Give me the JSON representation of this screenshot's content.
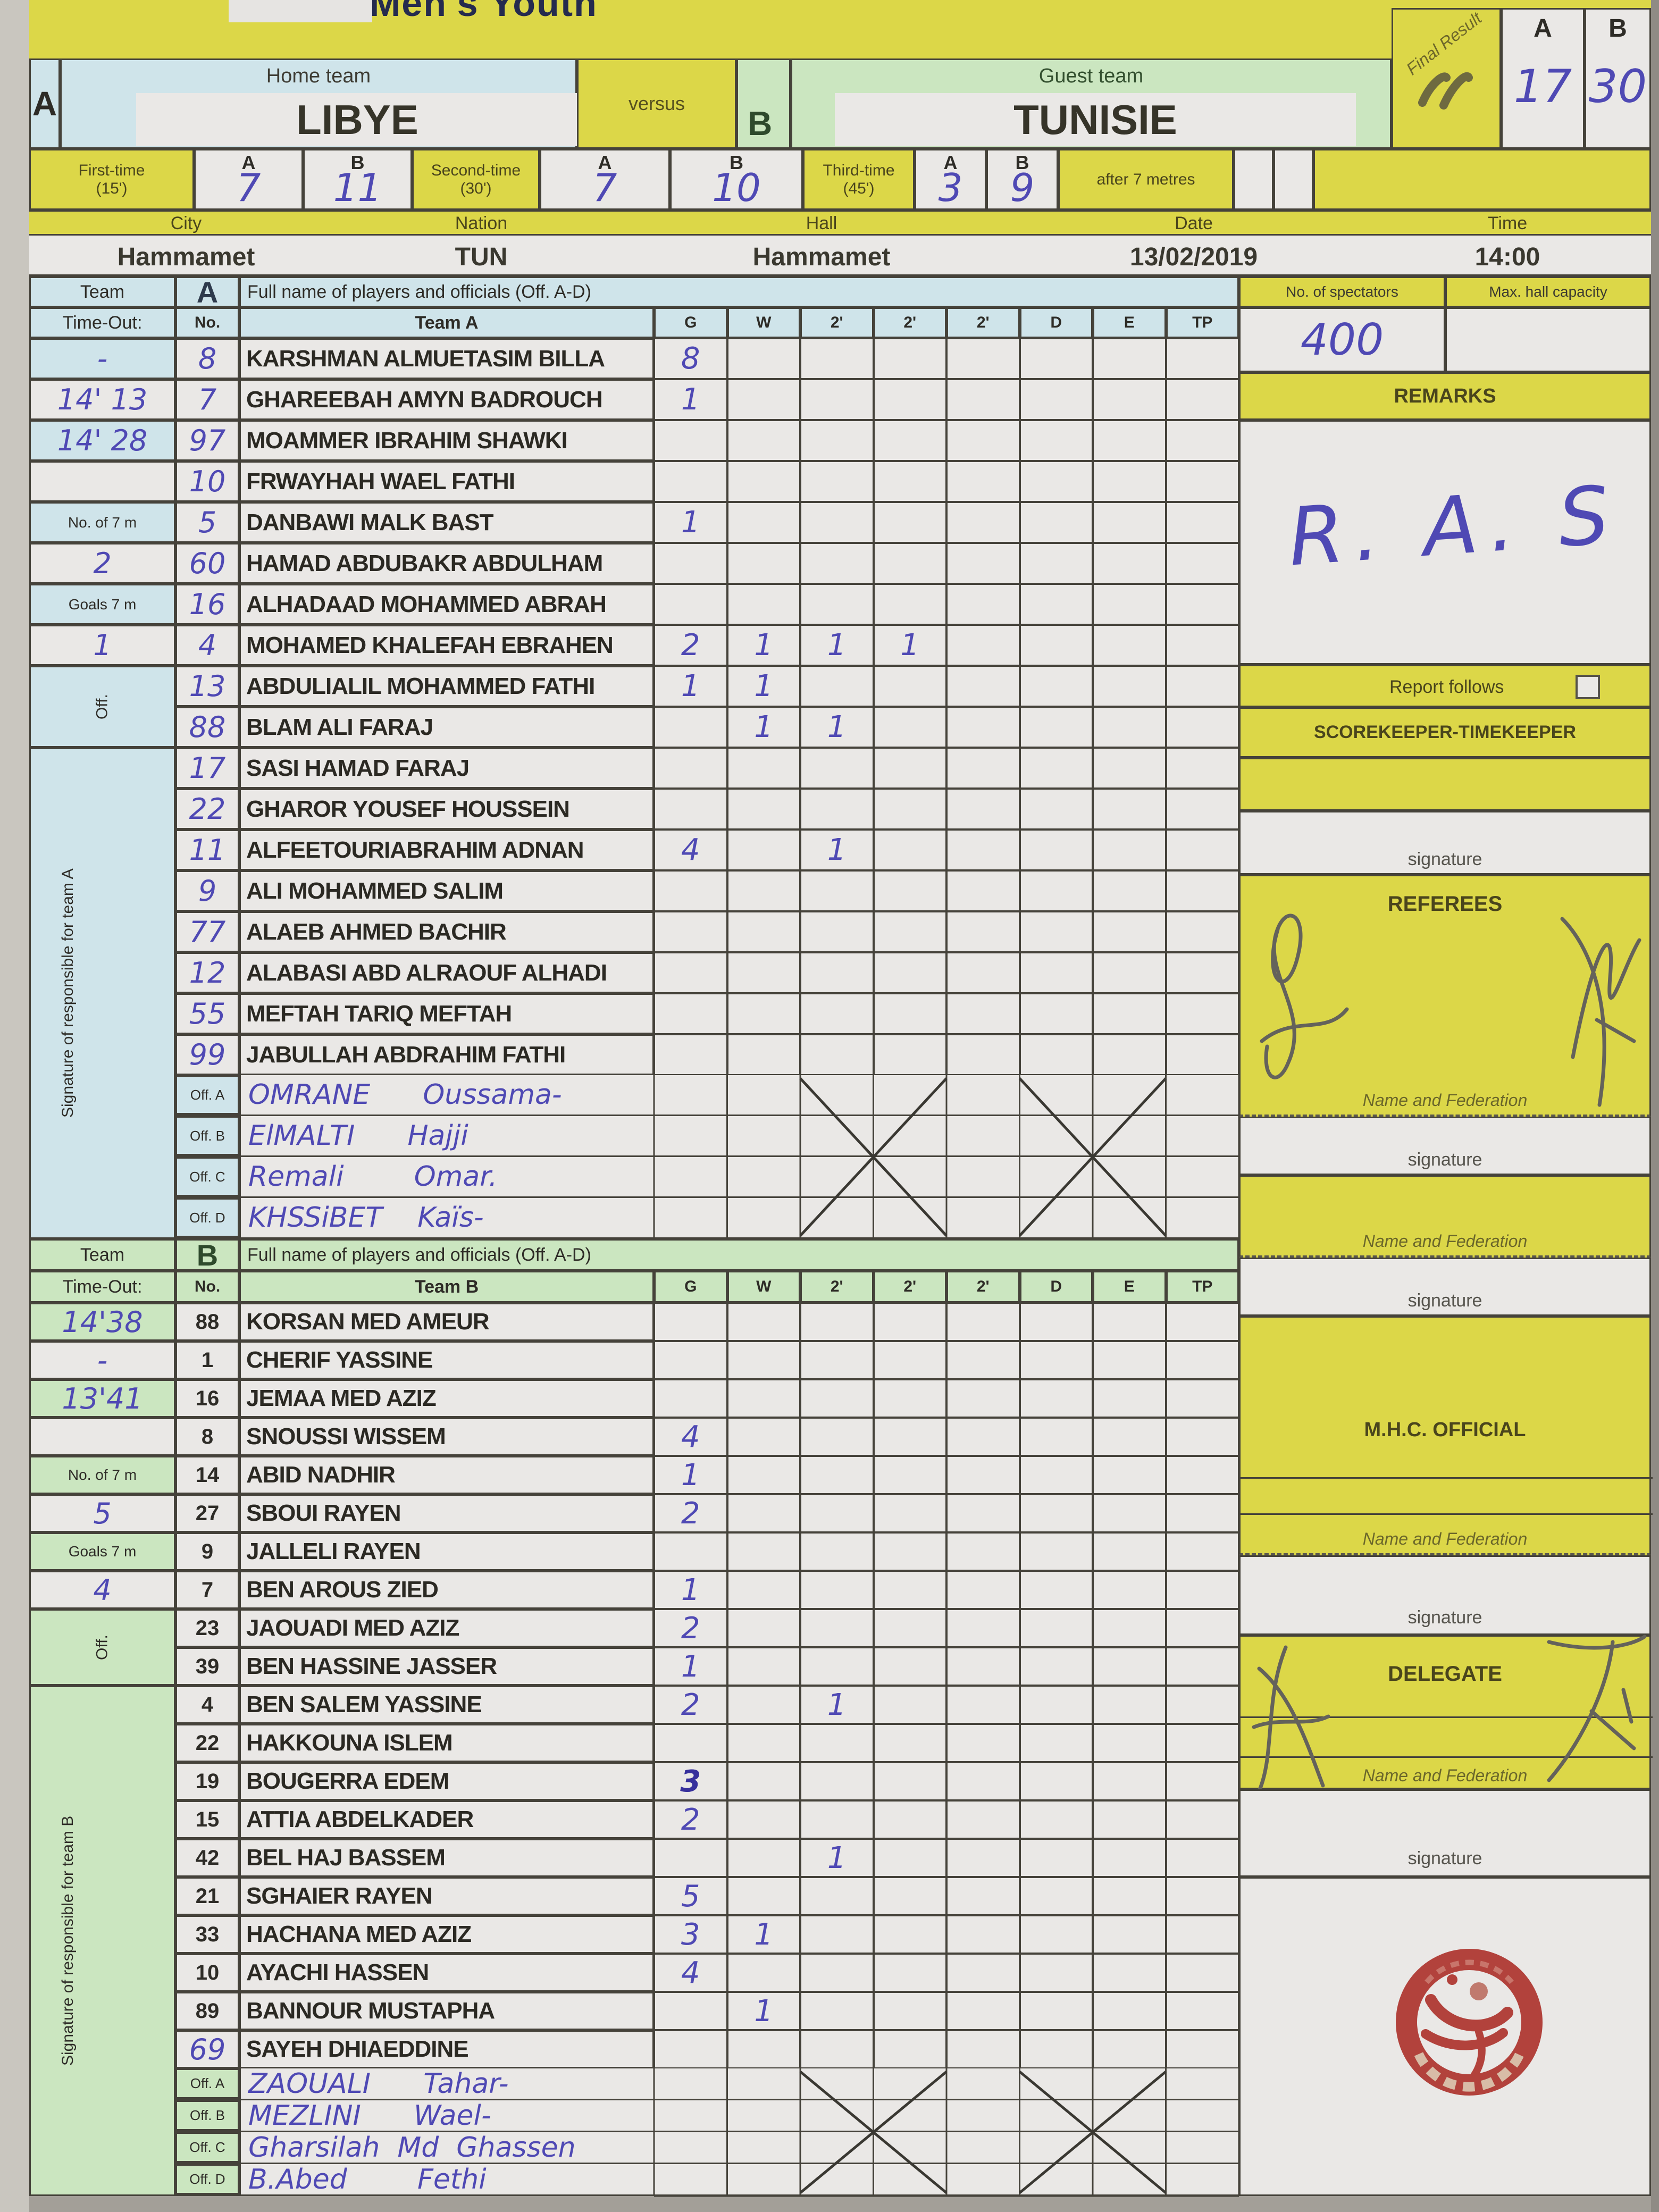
{
  "photo": {
    "title_fragment": "Men's Youth"
  },
  "colors": {
    "yellow": "#dcd748",
    "team_a_tint": "#cfe4ea",
    "team_b_tint": "#cbe6c0",
    "ink_blue": "#4f49b4",
    "stamp_red": "#b2423c"
  },
  "header": {
    "home": {
      "letter": "A",
      "label": "Home team",
      "name": "LIBYE"
    },
    "versus_label": "versus",
    "guest": {
      "letter": "B",
      "label": "Guest team",
      "name": "TUNISIE"
    },
    "final": {
      "label": "Final Result",
      "a_label": "A",
      "a": "17",
      "b_label": "B",
      "b": "30"
    },
    "periods": [
      {
        "label": "First-time",
        "sub": "(15')",
        "a_label": "A",
        "b_label": "B",
        "a": "7",
        "b": "11"
      },
      {
        "label": "Second-time",
        "sub": "(30')",
        "a_label": "A",
        "b_label": "B",
        "a": "7",
        "b": "10"
      },
      {
        "label": "Third-time",
        "sub": "(45')",
        "a_label": "A",
        "b_label": "B",
        "a": "3",
        "b": "9"
      },
      {
        "label": "after 7 metres",
        "a": "",
        "b": ""
      }
    ],
    "meta": {
      "labels": [
        "City",
        "Nation",
        "Hall",
        "Date",
        "Time"
      ],
      "values": [
        "Hammamet",
        "TUN",
        "Hammamet",
        "13/02/2019",
        "14:00"
      ]
    }
  },
  "spectators": {
    "label": "No. of spectators",
    "value": "400",
    "capacity_label": "Max. hall capacity",
    "capacity_value": ""
  },
  "stat_cols": [
    "G",
    "W",
    "2'",
    "2'",
    "2'",
    "D",
    "E",
    "TP"
  ],
  "team_a": {
    "section_label": "Team",
    "timeout_label": "Time-Out:",
    "letter": "A",
    "no_label": "No.",
    "fullname_label": "Full name of players and officials (Off. A-D)",
    "team_col_label": "Team A",
    "off_vertical_label": "Off.",
    "signature_vertical_label": "Signature of responsible for team A",
    "timeout_rows": [
      {
        "text": "-",
        "hw": true,
        "small": false
      },
      {
        "text": "14' 13",
        "hw": true,
        "small": false
      },
      {
        "text": "14' 28",
        "hw": true,
        "small": false
      },
      {
        "text": "",
        "hw": false,
        "small": false
      },
      {
        "text": "No. of 7 m",
        "hw": false,
        "small": true
      },
      {
        "text": "2",
        "hw": true,
        "small": false
      },
      {
        "text": "Goals 7 m",
        "hw": false,
        "small": true
      },
      {
        "text": "1",
        "hw": true,
        "small": false
      }
    ],
    "players": [
      {
        "no": "8",
        "name": "KARSHMAN ALMUETASIM BILLA",
        "stats": [
          "8",
          "",
          "",
          "",
          "",
          "",
          "",
          ""
        ]
      },
      {
        "no": "7",
        "name": "GHAREEBAH AMYN BADROUCH",
        "stats": [
          "1",
          "",
          "",
          "",
          "",
          "",
          "",
          ""
        ]
      },
      {
        "no": "97",
        "name": "MOAMMER IBRAHIM SHAWKI",
        "stats": [
          "",
          "",
          "",
          "",
          "",
          "",
          "",
          ""
        ]
      },
      {
        "no": "10",
        "name": "FRWAYHAH WAEL FATHI",
        "stats": [
          "",
          "",
          "",
          "",
          "",
          "",
          "",
          ""
        ]
      },
      {
        "no": "5",
        "name": "DANBAWI MALK BAST",
        "stats": [
          "1",
          "",
          "",
          "",
          "",
          "",
          "",
          ""
        ]
      },
      {
        "no": "60",
        "name": "HAMAD ABDUBAKR ABDULHAM",
        "stats": [
          "",
          "",
          "",
          "",
          "",
          "",
          "",
          ""
        ]
      },
      {
        "no": "16",
        "name": "ALHADAAD MOHAMMED ABRAH",
        "stats": [
          "",
          "",
          "",
          "",
          "",
          "",
          "",
          ""
        ]
      },
      {
        "no": "4",
        "name": "MOHAMED KHALEFAH EBRAHEN",
        "stats": [
          "2",
          "1",
          "1",
          "1",
          "",
          "",
          "",
          ""
        ]
      },
      {
        "no": "13",
        "name": "ABDULIALIL MOHAMMED FATHI",
        "stats": [
          "1",
          "1",
          "",
          "",
          "",
          "",
          "",
          ""
        ]
      },
      {
        "no": "88",
        "name": "BLAM ALI FARAJ",
        "stats": [
          "",
          "1",
          "1",
          "",
          "",
          "",
          "",
          ""
        ]
      },
      {
        "no": "17",
        "name": "SASI HAMAD FARAJ",
        "stats": [
          "",
          "",
          "",
          "",
          "",
          "",
          "",
          ""
        ]
      },
      {
        "no": "22",
        "name": "GHAROR YOUSEF HOUSSEIN",
        "stats": [
          "",
          "",
          "",
          "",
          "",
          "",
          "",
          ""
        ]
      },
      {
        "no": "11",
        "name": "ALFEETOURIABRAHIM ADNAN",
        "stats": [
          "4",
          "",
          "1",
          "",
          "",
          "",
          "",
          ""
        ]
      },
      {
        "no": "9",
        "name": "ALI MOHAMMED SALIM",
        "stats": [
          "",
          "",
          "",
          "",
          "",
          "",
          "",
          ""
        ]
      },
      {
        "no": "77",
        "name": "ALAEB AHMED BACHIR",
        "stats": [
          "",
          "",
          "",
          "",
          "",
          "",
          "",
          ""
        ]
      },
      {
        "no": "12",
        "name": "ALABASI ABD ALRAOUF ALHADI",
        "stats": [
          "",
          "",
          "",
          "",
          "",
          "",
          "",
          ""
        ]
      },
      {
        "no": "55",
        "name": "MEFTAH TARIQ MEFTAH",
        "stats": [
          "",
          "",
          "",
          "",
          "",
          "",
          "",
          ""
        ]
      },
      {
        "no": "99",
        "name": "JABULLAH ABDRAHIM FATHI",
        "stats": [
          "",
          "",
          "",
          "",
          "",
          "",
          "",
          ""
        ]
      }
    ],
    "officials": [
      {
        "label": "Off. A",
        "name": "OMRANE      Oussama-"
      },
      {
        "label": "Off. B",
        "name": "ElMALTI      Hajji"
      },
      {
        "label": "Off. C",
        "name": "Remali        Omar."
      },
      {
        "label": "Off. D",
        "name": "KHSSiBET    Kaïs-"
      }
    ]
  },
  "team_b": {
    "section_label": "Team",
    "timeout_label": "Time-Out:",
    "letter": "B",
    "no_label": "No.",
    "fullname_label": "Full name of players and officials (Off. A-D)",
    "team_col_label": "Team B",
    "off_vertical_label": "Off.",
    "signature_vertical_label": "Signature of responsible for team B",
    "timeout_rows": [
      {
        "text": "14'38",
        "hw": true,
        "small": false
      },
      {
        "text": "-",
        "hw": true,
        "small": false
      },
      {
        "text": "13'41",
        "hw": true,
        "small": false
      },
      {
        "text": "",
        "hw": false,
        "small": false
      },
      {
        "text": "No. of 7 m",
        "hw": false,
        "small": true
      },
      {
        "text": "5",
        "hw": true,
        "small": false
      },
      {
        "text": "Goals 7 m",
        "hw": false,
        "small": true
      },
      {
        "text": "4",
        "hw": true,
        "small": false
      }
    ],
    "players": [
      {
        "no": "88",
        "name": "KORSAN MED AMEUR",
        "stats": [
          "",
          "",
          "",
          "",
          "",
          "",
          "",
          ""
        ]
      },
      {
        "no": "1",
        "name": "CHERIF YASSINE",
        "stats": [
          "",
          "",
          "",
          "",
          "",
          "",
          "",
          ""
        ]
      },
      {
        "no": "16",
        "name": "JEMAA MED AZIZ",
        "stats": [
          "",
          "",
          "",
          "",
          "",
          "",
          "",
          ""
        ]
      },
      {
        "no": "8",
        "name": "SNOUSSI WISSEM",
        "stats": [
          "4",
          "",
          "",
          "",
          "",
          "",
          "",
          ""
        ]
      },
      {
        "no": "14",
        "name": "ABID NADHIR",
        "stats": [
          "1",
          "",
          "",
          "",
          "",
          "",
          "",
          ""
        ]
      },
      {
        "no": "27",
        "name": "SBOUI RAYEN",
        "stats": [
          "2",
          "",
          "",
          "",
          "",
          "",
          "",
          ""
        ]
      },
      {
        "no": "9",
        "name": "JALLELI RAYEN",
        "stats": [
          "",
          "",
          "",
          "",
          "",
          "",
          "",
          ""
        ]
      },
      {
        "no": "7",
        "name": "BEN AROUS ZIED",
        "stats": [
          "1",
          "",
          "",
          "",
          "",
          "",
          "",
          ""
        ]
      },
      {
        "no": "23",
        "name": "JAOUADI MED AZIZ",
        "stats": [
          "2",
          "",
          "",
          "",
          "",
          "",
          "",
          ""
        ]
      },
      {
        "no": "39",
        "name": "BEN HASSINE JASSER",
        "stats": [
          "1",
          "",
          "",
          "",
          "",
          "",
          "",
          ""
        ]
      },
      {
        "no": "4",
        "name": "BEN SALEM YASSINE",
        "stats": [
          "2",
          "",
          "1",
          "",
          "",
          "",
          "",
          ""
        ]
      },
      {
        "no": "22",
        "name": "HAKKOUNA ISLEM",
        "stats": [
          "",
          "",
          "",
          "",
          "",
          "",
          "",
          ""
        ]
      },
      {
        "no": "19",
        "name": "BOUGERRA EDEM",
        "stats": [
          "3",
          "",
          "",
          "",
          "",
          "",
          "",
          ""
        ]
      },
      {
        "no": "15",
        "name": "ATTIA ABDELKADER",
        "stats": [
          "2",
          "",
          "",
          "",
          "",
          "",
          "",
          ""
        ]
      },
      {
        "no": "42",
        "name": "BEL HAJ BASSEM",
        "stats": [
          "",
          "",
          "1",
          "",
          "",
          "",
          "",
          ""
        ]
      },
      {
        "no": "21",
        "name": "SGHAIER RAYEN",
        "stats": [
          "5",
          "",
          "",
          "",
          "",
          "",
          "",
          ""
        ]
      },
      {
        "no": "33",
        "name": "HACHANA MED AZIZ",
        "stats": [
          "3",
          "1",
          "",
          "",
          "",
          "",
          "",
          ""
        ]
      },
      {
        "no": "10",
        "name": "AYACHI HASSEN",
        "stats": [
          "4",
          "",
          "",
          "",
          "",
          "",
          "",
          ""
        ]
      },
      {
        "no": "89",
        "name": "BANNOUR MUSTAPHA",
        "stats": [
          "",
          "1",
          "",
          "",
          "",
          "",
          "",
          ""
        ]
      },
      {
        "no": "69",
        "name": "SAYEH DHIAEDDINE",
        "stats": [
          "",
          "",
          "",
          "",
          "",
          "",
          "",
          ""
        ]
      }
    ],
    "officials": [
      {
        "label": "Off. A",
        "name": "ZAOUALI      Tahar-"
      },
      {
        "label": "Off. B",
        "name": "MEZLINI      Wael-"
      },
      {
        "label": "Off. C",
        "name": "Gharsilah  Md  Ghassen"
      },
      {
        "label": "Off. D",
        "name": "B.Abed        Fethi"
      }
    ]
  },
  "side": {
    "remarks_label": "REMARKS",
    "remarks_value": "R. A. S",
    "report_follows_label": "Report follows",
    "scorekeeper_label": "SCOREKEEPER-TIMEKEEPER",
    "signature_label": "signature",
    "referees_label": "REFEREES",
    "name_fed_label": "Name and Federation",
    "mhc_label": "M.H.C. OFFICIAL",
    "delegate_label": "DELEGATE"
  }
}
